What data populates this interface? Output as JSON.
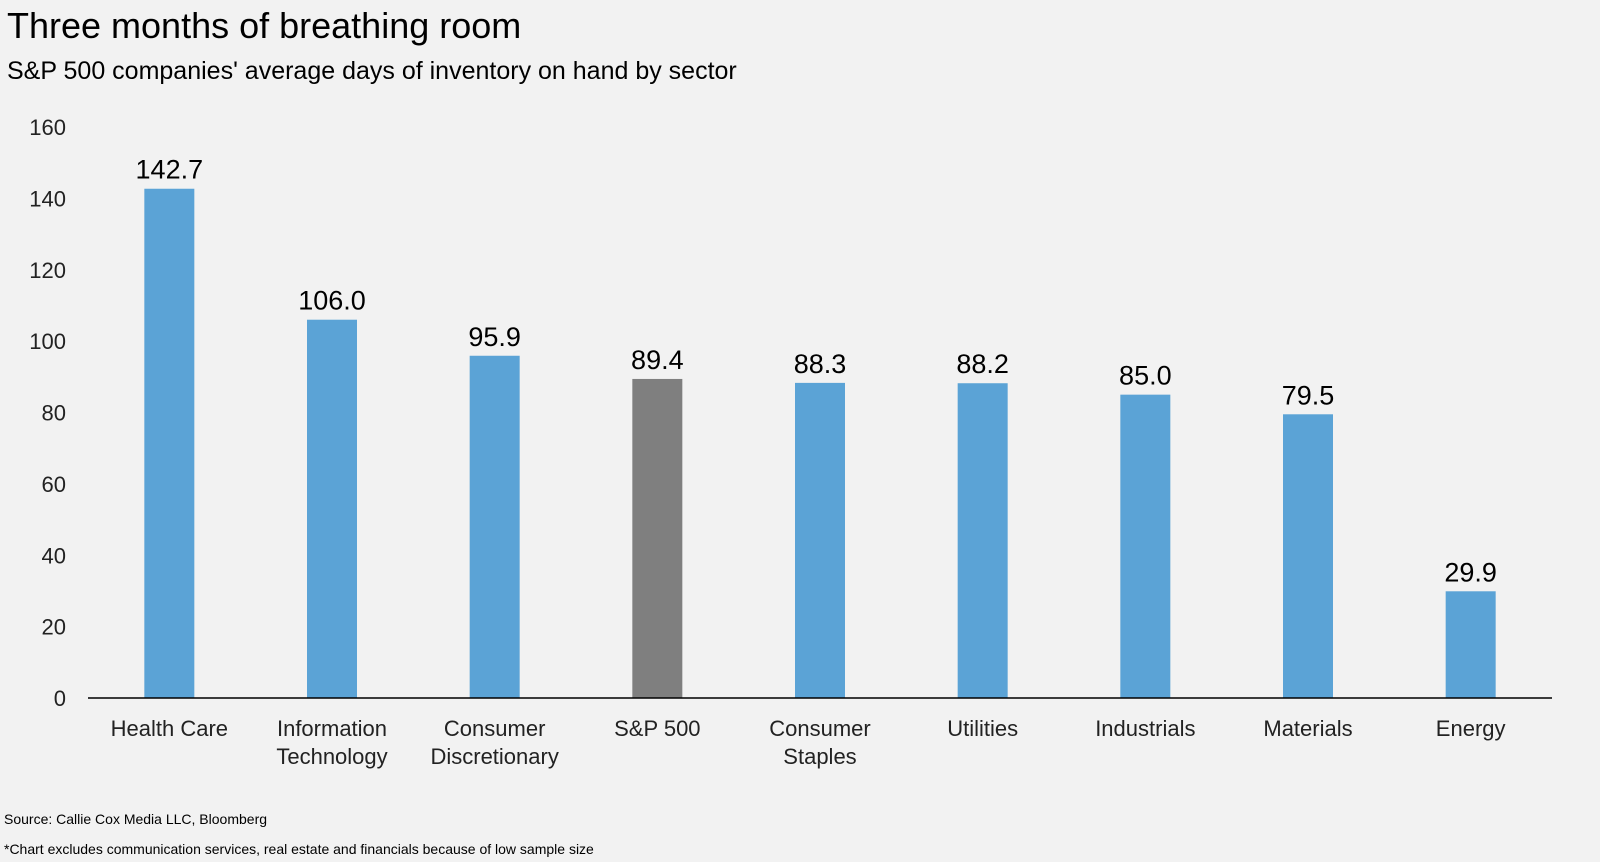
{
  "title": "Three months of breathing room",
  "subtitle": "S&P 500 companies' average days of inventory on hand by sector",
  "source": "Source: Callie Cox Media LLC, Bloomberg",
  "footnote": "*Chart excludes communication services, real estate and financials because of low sample size",
  "colors": {
    "background": "#f2f2f2",
    "bar": "#5ba3d6",
    "highlight_bar": "#7f7f7f",
    "axis": "#000000"
  },
  "chart_data": {
    "type": "bar",
    "title": "Three months of breathing room",
    "subtitle": "S&P 500 companies' average days of inventory on hand by sector",
    "xlabel": "",
    "ylabel": "",
    "ylim": [
      0,
      160
    ],
    "yticks": [
      "0",
      "20",
      "40",
      "60",
      "80",
      "100",
      "120",
      "140",
      "160"
    ],
    "grid": false,
    "legend": "none",
    "categories": [
      "Health Care",
      "Information Technology",
      "Consumer Discretionary",
      "S&P 500",
      "Consumer Staples",
      "Utilities",
      "Industrials",
      "Materials",
      "Energy"
    ],
    "category_label_lines": [
      [
        "Health Care"
      ],
      [
        "Information",
        "Technology"
      ],
      [
        "Consumer",
        "Discretionary"
      ],
      [
        "S&P 500"
      ],
      [
        "Consumer",
        "Staples"
      ],
      [
        "Utilities"
      ],
      [
        "Industrials"
      ],
      [
        "Materials"
      ],
      [
        "Energy"
      ]
    ],
    "values": [
      142.7,
      106.0,
      95.9,
      89.4,
      88.3,
      88.2,
      85.0,
      79.5,
      29.9
    ],
    "data_labels": [
      "142.7",
      "106.0",
      "95.9",
      "89.4",
      "88.3",
      "88.2",
      "85.0",
      "79.5",
      "29.9"
    ],
    "highlight": "S&P 500"
  }
}
